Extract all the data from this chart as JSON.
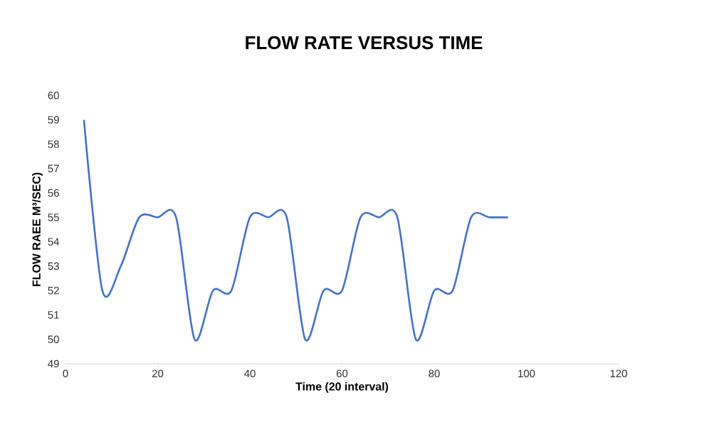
{
  "chart_data": {
    "type": "line",
    "title": "FLOW RATE VERSUS TIME",
    "xlabel": "Time (20 interval)",
    "ylabel": "FLOW RAEE M³/SEC)",
    "x": [
      4,
      8,
      12,
      16,
      20,
      24,
      28,
      32,
      36,
      40,
      44,
      48,
      52,
      56,
      60,
      64,
      68,
      72,
      76,
      80,
      84,
      88,
      92,
      96
    ],
    "values": [
      59,
      52,
      53,
      55,
      55,
      55,
      50,
      52,
      52,
      55,
      55,
      55,
      50,
      52,
      52,
      55,
      55,
      55,
      50,
      52,
      52,
      55,
      55,
      55
    ],
    "color": "#4472c4",
    "xlim": [
      0,
      120
    ],
    "ylim": [
      49,
      60
    ],
    "xticks": [
      0,
      20,
      40,
      60,
      80,
      100,
      120
    ],
    "yticks": [
      49,
      50,
      51,
      52,
      53,
      54,
      55,
      56,
      57,
      58,
      59,
      60
    ]
  }
}
